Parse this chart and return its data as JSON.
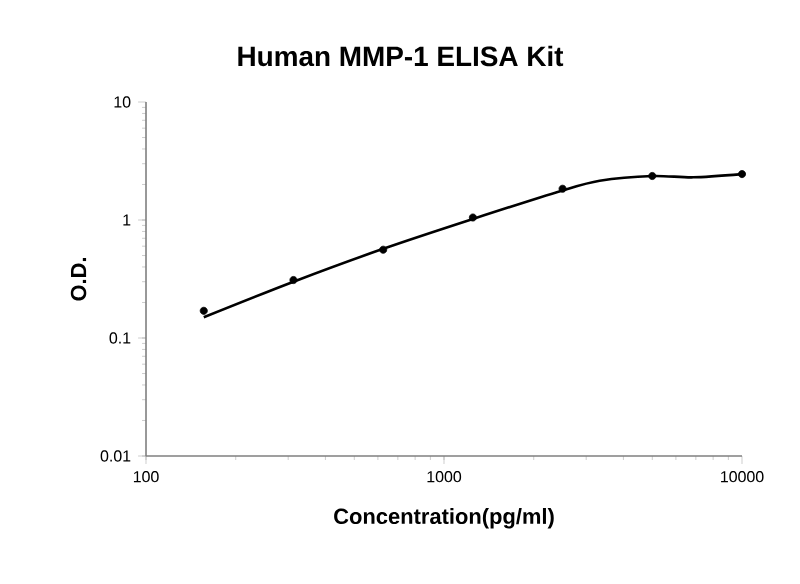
{
  "chart_data": {
    "type": "scatter",
    "title": "Human MMP-1 ELISA Kit",
    "xlabel": "Concentration(pg/ml)",
    "ylabel": "O.D.",
    "log": "xy",
    "xlim": [
      100,
      10000
    ],
    "ylim": [
      0.01,
      10
    ],
    "xticks": [
      100,
      1000,
      10000
    ],
    "yticks": [
      0.01,
      0.1,
      1,
      10
    ],
    "grid": false,
    "series": [
      {
        "color": "#000000",
        "marker": "circle",
        "x": [
          156.25,
          312.5,
          625,
          1250,
          2500,
          5000,
          10000
        ],
        "values": [
          0.17,
          0.31,
          0.56,
          1.05,
          1.84,
          2.36,
          2.45
        ]
      },
      {
        "type": "line",
        "color": "#000000",
        "marker": "none",
        "x": [
          156.25,
          312.5,
          625,
          1250,
          2500,
          3330,
          5000,
          6860,
          10000
        ],
        "values": [
          0.15,
          0.3,
          0.57,
          1.02,
          1.78,
          2.15,
          2.36,
          2.3,
          2.45
        ]
      }
    ]
  }
}
